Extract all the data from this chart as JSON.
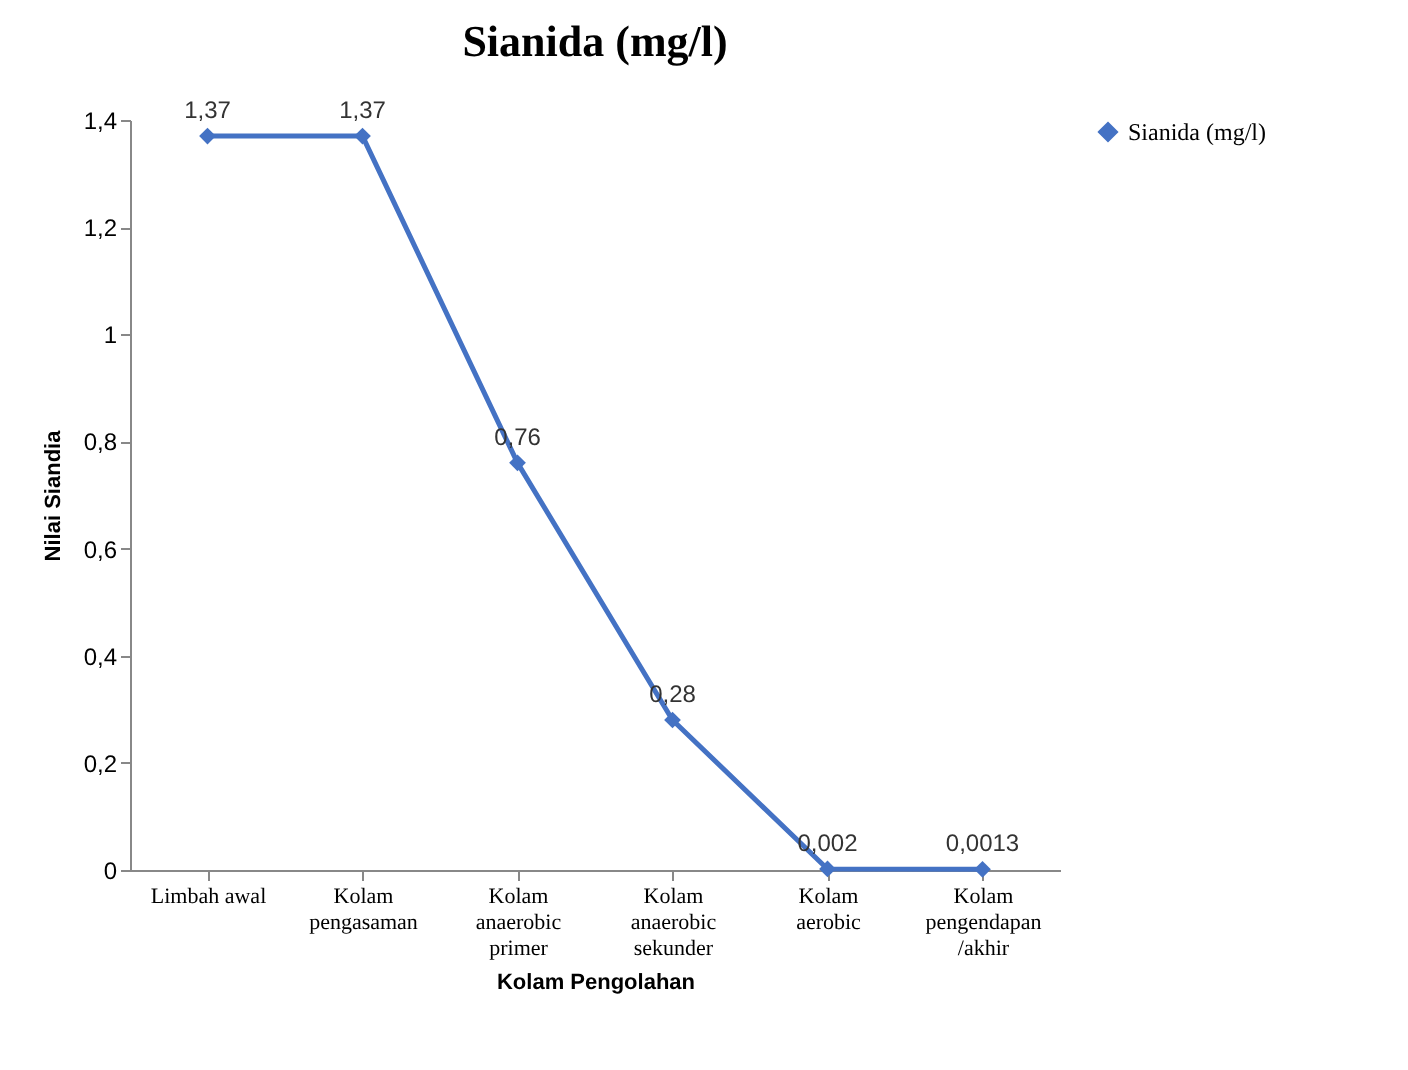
{
  "chart_data": {
    "type": "line",
    "title": "Sianida (mg/l)",
    "xlabel": "Kolam Pengolahan",
    "ylabel": "Nilai Siandia",
    "categories": [
      "Limbah awal",
      "Kolam pengasaman",
      "Kolam anaerobic primer",
      "Kolam anaerobic sekunder",
      "Kolam aerobic",
      "Kolam pengendapan /akhir"
    ],
    "series": [
      {
        "name": "Sianida (mg/l)",
        "color": "#4472c4",
        "values": [
          1.37,
          1.37,
          0.76,
          0.28,
          0.002,
          0.0013
        ],
        "value_labels": [
          "1,37",
          "1,37",
          "0,76",
          "0,28",
          "0,002",
          "0,0013"
        ]
      }
    ],
    "ylim": [
      0,
      1.4
    ],
    "yticks": [
      0,
      {
        "value": 0.2,
        "label": "0,2"
      },
      {
        "value": 0.4,
        "label": "0,4"
      },
      {
        "value": 0.6,
        "label": "0,6"
      },
      {
        "value": 0.8,
        "label": "0,8"
      },
      1,
      {
        "value": 1.2,
        "label": "1,2"
      },
      {
        "value": 1.4,
        "label": "1,4"
      }
    ],
    "grid": false,
    "legend": "right",
    "marker": "diamond",
    "line_style": "solid"
  }
}
